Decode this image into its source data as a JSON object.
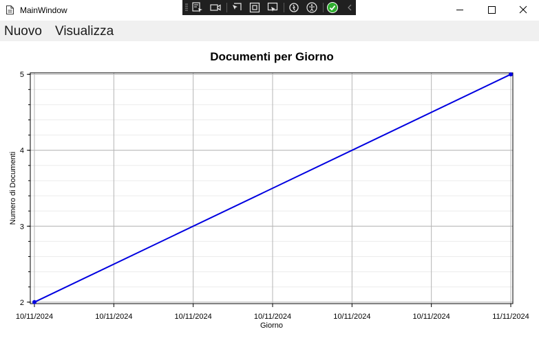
{
  "window": {
    "title": "MainWindow"
  },
  "debug_toolbar": {
    "icons": [
      "select-element-icon",
      "display-layout-adorners-icon",
      "track-focused-element-icon",
      "preview-selection-icon",
      "select-element-in-running-app-icon",
      "hot-reload-icon",
      "accessibility-checker-icon",
      "checkmark-status-icon",
      "collapse-chevron-icon"
    ],
    "status_color": "#2fae2f"
  },
  "window_controls": {
    "icons": [
      "minimize-icon",
      "maximize-icon",
      "close-icon"
    ]
  },
  "menu": {
    "items": [
      {
        "label": "Nuovo"
      },
      {
        "label": "Visualizza"
      }
    ]
  },
  "chart_data": {
    "type": "line",
    "title": "Documenti per Giorno",
    "xlabel": "Giorno",
    "ylabel": "Numero di Documenti",
    "x_tick_labels": [
      "10/11/2024",
      "10/11/2024",
      "10/11/2024",
      "10/11/2024",
      "10/11/2024",
      "10/11/2024",
      "11/11/2024"
    ],
    "x_ticks_fraction_of_day": [
      0,
      0.1667,
      0.3333,
      0.5,
      0.6667,
      0.8333,
      1
    ],
    "y_ticks": [
      2,
      3,
      4,
      5
    ],
    "ylim": [
      1.98,
      5.02
    ],
    "grid": true,
    "series": [
      {
        "color": "#0000e0",
        "points": [
          {
            "x": "10/11/2024",
            "y": 2
          },
          {
            "x": "11/11/2024",
            "y": 5
          }
        ]
      }
    ]
  }
}
